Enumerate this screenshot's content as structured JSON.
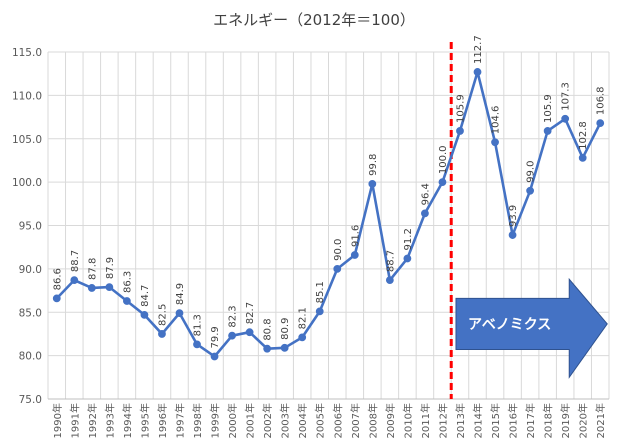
{
  "chart_data": {
    "type": "line",
    "title": "エネルギー（2012年＝100）",
    "xlabel": "",
    "ylabel": "",
    "ylim": [
      75,
      115
    ],
    "yticks": [
      75,
      80,
      85,
      90,
      95,
      100,
      105,
      110,
      115
    ],
    "yticklabels": [
      "75.0",
      "80.0",
      "85.0",
      "90.0",
      "95.0",
      "100.0",
      "105.0",
      "110.0",
      "115.0"
    ],
    "grid": "vertical and horizontal",
    "legend": "none",
    "categories": [
      "1990年",
      "1991年",
      "1992年",
      "1993年",
      "1994年",
      "1995年",
      "1996年",
      "1997年",
      "1998年",
      "1999年",
      "2000年",
      "2001年",
      "2002年",
      "2003年",
      "2004年",
      "2005年",
      "2006年",
      "2007年",
      "2008年",
      "2009年",
      "2010年",
      "2011年",
      "2012年",
      "2013年",
      "2014年",
      "2015年",
      "2016年",
      "2017年",
      "2018年",
      "2019年",
      "2020年",
      "2021年"
    ],
    "series": [
      {
        "color": "#4472c4",
        "values": [
          86.6,
          88.7,
          87.8,
          87.9,
          86.3,
          84.7,
          82.5,
          84.9,
          81.3,
          79.9,
          82.3,
          82.7,
          80.8,
          80.9,
          82.1,
          85.1,
          90.0,
          91.6,
          99.8,
          88.7,
          91.2,
          96.4,
          100.0,
          105.9,
          112.7,
          104.6,
          93.9,
          99.0,
          105.9,
          107.3,
          102.8,
          106.8
        ],
        "data_labels": [
          "86.6",
          "88.7",
          "87.8",
          "87.9",
          "86.3",
          "84.7",
          "82.5",
          "84.9",
          "81.3",
          "79.9",
          "82.3",
          "82.7",
          "80.8",
          "80.9",
          "82.1",
          "85.1",
          "90.0",
          "91.6",
          "99.8",
          "88.7",
          "91.2",
          "96.4",
          "100.0",
          "105.9",
          "112.7",
          "104.6",
          "93.9",
          "99.0",
          "105.9",
          "107.3",
          "102.8",
          "106.8"
        ]
      }
    ],
    "annotations": {
      "divider": {
        "between": [
          "2012年",
          "2013年"
        ],
        "color": "#ff0000",
        "style": "dashed"
      },
      "arrow": {
        "label": "アベノミクス",
        "color": "#4472c4",
        "from": "2013年",
        "to": "2021年"
      }
    }
  }
}
